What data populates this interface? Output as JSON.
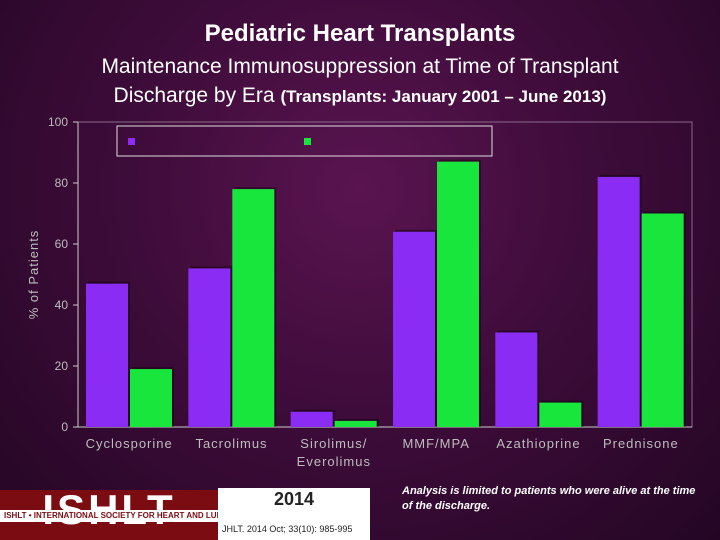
{
  "header": {
    "title": "Pediatric Heart Transplants",
    "subtitle_line1": "Maintenance Immunosuppression at Time of Transplant",
    "subtitle_line2": "Discharge by Era",
    "subtitle_small": "(Transplants: January 2001 – June 2013)"
  },
  "chart_data": {
    "type": "bar",
    "title": "Pediatric Heart Transplants",
    "ylabel": "% of Patients",
    "xlabel": "",
    "ylim": [
      0,
      100
    ],
    "yticks": [
      0,
      20,
      40,
      60,
      80,
      100
    ],
    "categories": [
      "Cyclosporine",
      "Tacrolimus",
      "Sirolimus/ Everolimus",
      "MMF/MPA",
      "Azathioprine",
      "Prednisone"
    ],
    "category_lines": [
      [
        "Cyclosporine"
      ],
      [
        "Tacrolimus"
      ],
      [
        "Sirolimus/",
        "Everolimus"
      ],
      [
        "MMF/MPA"
      ],
      [
        "Azathioprine"
      ],
      [
        "Prednisone"
      ]
    ],
    "series": [
      {
        "name": "",
        "color": "#8b2cf5",
        "values": [
          47,
          52,
          5,
          64,
          31,
          82
        ]
      },
      {
        "name": "",
        "color": "#19e63c",
        "values": [
          19,
          78,
          2,
          87,
          8,
          70
        ]
      }
    ],
    "legend_position": "top",
    "grid": false
  },
  "footer": {
    "logo_text": "ISHLT",
    "logo_band": "ISHLT • INTERNATIONAL SOCIETY FOR HEART AND LUNG TRANSPLANTATION",
    "year": "2014",
    "citation": "JHLT. 2014 Oct; 33(10): 985-995",
    "note": "Analysis is limited to patients who were alive at the time of the discharge."
  }
}
